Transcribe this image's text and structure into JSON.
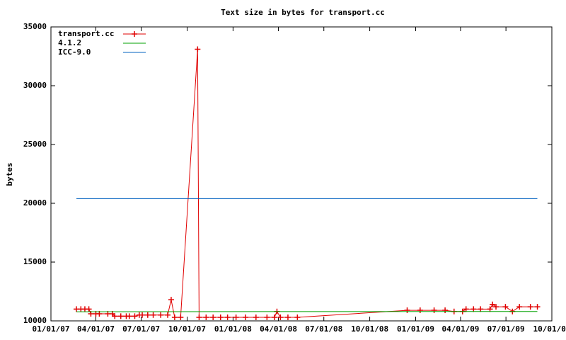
{
  "chart_data": {
    "type": "line",
    "title": "Text size in bytes for transport.cc",
    "y_label": "bytes",
    "xlim": [
      "2007-01-01",
      "2009-10-01"
    ],
    "xticks": [
      {
        "value": "2007-01-01",
        "label": "01/01/07"
      },
      {
        "value": "2007-04-01",
        "label": "04/01/07"
      },
      {
        "value": "2007-07-01",
        "label": "07/01/07"
      },
      {
        "value": "2007-10-01",
        "label": "10/01/07"
      },
      {
        "value": "2008-01-01",
        "label": "01/01/08"
      },
      {
        "value": "2008-04-01",
        "label": "04/01/08"
      },
      {
        "value": "2008-07-01",
        "label": "07/01/08"
      },
      {
        "value": "2008-10-01",
        "label": "10/01/08"
      },
      {
        "value": "2009-01-01",
        "label": "01/01/09"
      },
      {
        "value": "2009-04-01",
        "label": "04/01/09"
      },
      {
        "value": "2009-07-01",
        "label": "07/01/09"
      },
      {
        "value": "2009-10-01",
        "label": "10/01/09"
      }
    ],
    "ylim": [
      10000,
      35000
    ],
    "yticks": [
      10000,
      15000,
      20000,
      25000,
      30000,
      35000
    ],
    "grid": false,
    "legend": "top-left",
    "series": [
      {
        "name": "transport.cc",
        "color": "#e00000",
        "markers": true,
        "x": [
          "2007-02-21",
          "2007-03-02",
          "2007-03-10",
          "2007-03-18",
          "2007-03-22",
          "2007-04-01",
          "2007-04-08",
          "2007-04-25",
          "2007-05-04",
          "2007-05-09",
          "2007-05-21",
          "2007-06-01",
          "2007-06-07",
          "2007-06-18",
          "2007-06-27",
          "2007-07-03",
          "2007-07-14",
          "2007-07-25",
          "2007-08-09",
          "2007-08-23",
          "2007-08-30",
          "2007-09-06",
          "2007-09-18",
          "2007-10-22",
          "2007-10-25",
          "2007-11-08",
          "2007-11-22",
          "2007-12-07",
          "2007-12-21",
          "2008-01-07",
          "2008-01-26",
          "2008-02-16",
          "2008-03-09",
          "2008-03-24",
          "2008-03-29",
          "2008-04-05",
          "2008-04-20",
          "2008-05-09",
          "2008-12-15",
          "2009-01-10",
          "2009-02-07",
          "2009-03-01",
          "2009-03-19",
          "2009-04-05",
          "2009-04-12",
          "2009-04-27",
          "2009-05-11",
          "2009-05-30",
          "2009-06-04",
          "2009-06-11",
          "2009-06-30",
          "2009-07-14",
          "2009-07-28",
          "2009-08-19",
          "2009-09-02"
        ],
        "values": [
          11000,
          11000,
          11000,
          11000,
          10600,
          10600,
          10600,
          10600,
          10600,
          10400,
          10400,
          10400,
          10400,
          10400,
          10500,
          10500,
          10500,
          10500,
          10500,
          10500,
          11800,
          10300,
          10300,
          33100,
          10300,
          10300,
          10300,
          10300,
          10300,
          10300,
          10300,
          10300,
          10300,
          10300,
          10800,
          10300,
          10300,
          10300,
          10900,
          10900,
          10900,
          10900,
          10800,
          10800,
          11000,
          11000,
          11000,
          11000,
          11400,
          11200,
          11200,
          10800,
          11200,
          11200,
          11200
        ]
      },
      {
        "name": "4.1.2",
        "color": "#00a000",
        "markers": false,
        "x": [
          "2007-02-21",
          "2009-09-02"
        ],
        "values": [
          10780,
          10800
        ]
      },
      {
        "name": "ICC-9.0",
        "color": "#0060c0",
        "markers": false,
        "x": [
          "2007-02-21",
          "2009-09-02"
        ],
        "values": [
          20400,
          20400
        ]
      }
    ]
  }
}
